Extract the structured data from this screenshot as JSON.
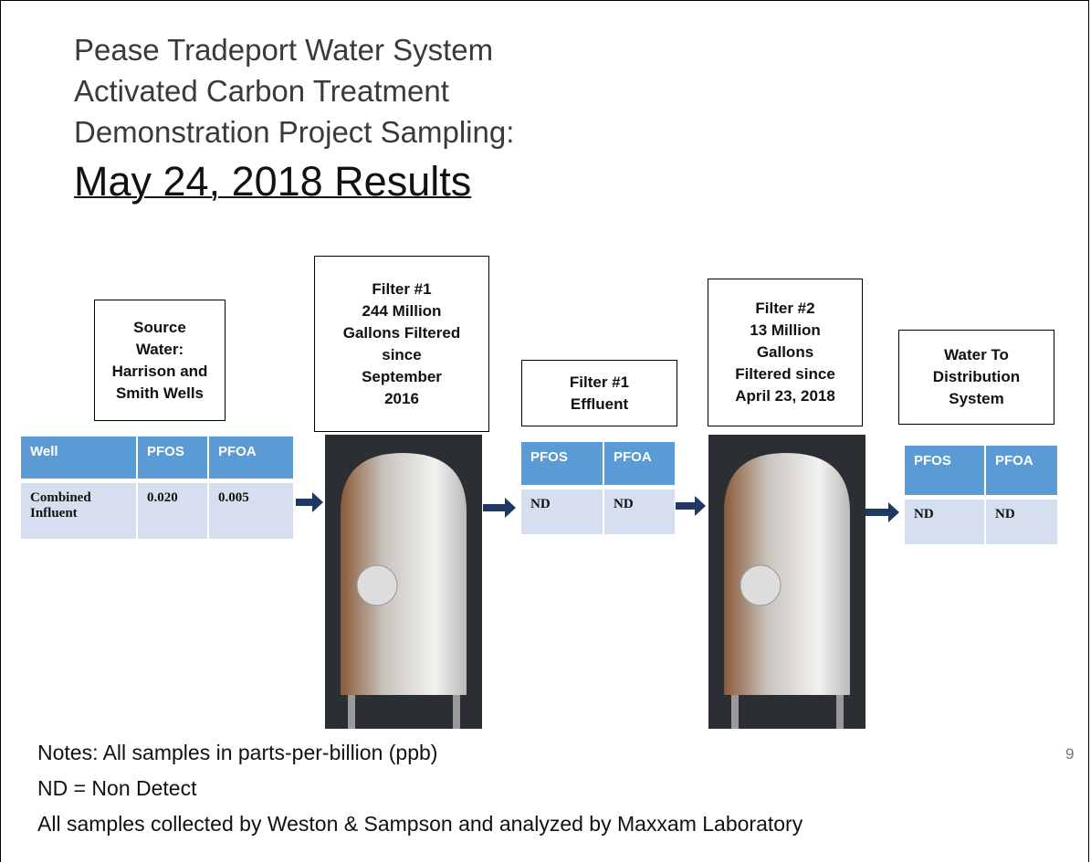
{
  "title_lines": [
    "Pease Tradeport Water System",
    "Activated Carbon Treatment",
    "Demonstration Project Sampling:"
  ],
  "subtitle": "May 24, 2018 Results",
  "stage_boxes": [
    {
      "lines": [
        "Source",
        "Water:",
        "Harrison and",
        "Smith Wells"
      ]
    },
    {
      "lines": [
        "Filter #1",
        "244 Million",
        "Gallons Filtered",
        "since",
        "September",
        "2016"
      ]
    },
    {
      "lines": [
        "Filter #1",
        "Effluent"
      ]
    },
    {
      "lines": [
        "Filter #2",
        "13 Million",
        "Gallons",
        "Filtered since",
        "April 23, 2018"
      ]
    },
    {
      "lines": [
        "Water To",
        "Distribution",
        "System"
      ]
    }
  ],
  "tables": [
    {
      "header": [
        "Well",
        "PFOS",
        "PFOA"
      ],
      "rows": [
        [
          "Combined Influent",
          "0.020",
          "0.005"
        ]
      ]
    },
    {
      "header": [
        "PFOS",
        "PFOA"
      ],
      "rows": [
        [
          "ND",
          "ND"
        ]
      ]
    },
    {
      "header": [
        "PFOS",
        "PFOA"
      ],
      "rows": [
        [
          "ND",
          "ND"
        ]
      ]
    }
  ],
  "notes": [
    "Notes: All samples in parts-per-billion (ppb)",
    "ND = Non Detect",
    "All samples collected by Weston & Sampson and analyzed by Maxxam Laboratory"
  ],
  "page_number": "9"
}
